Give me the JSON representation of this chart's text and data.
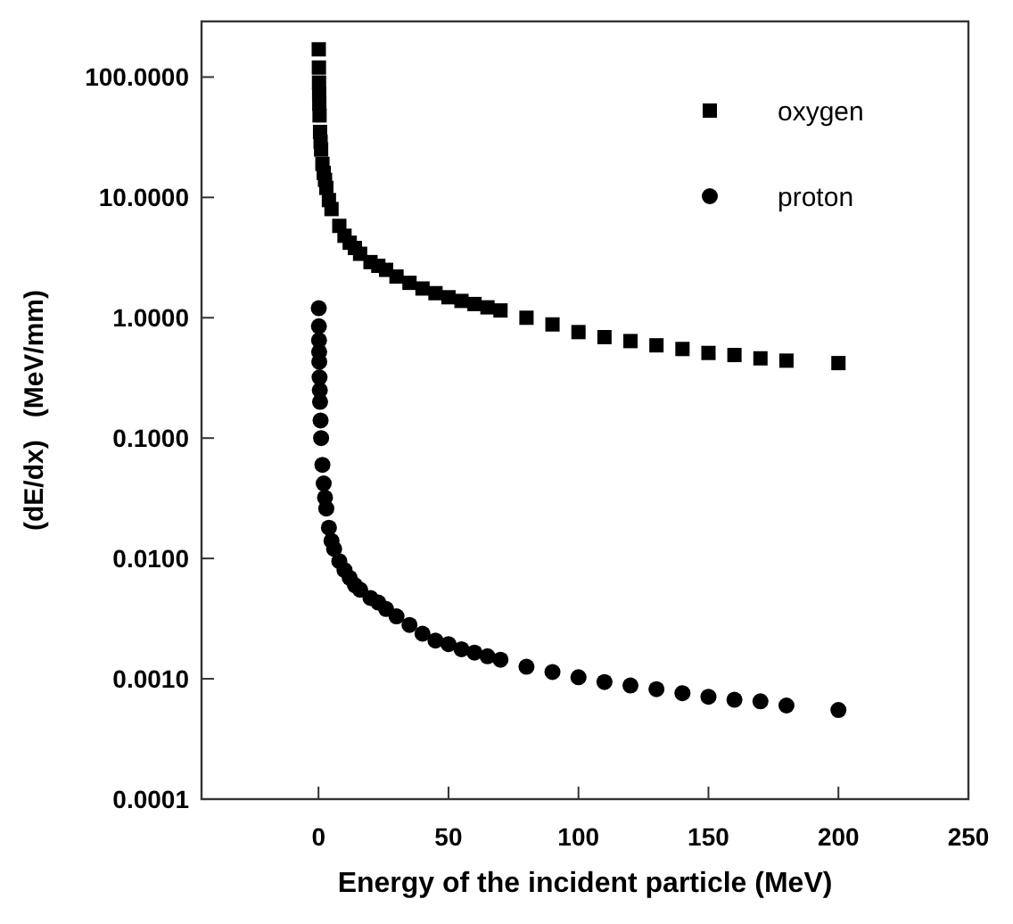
{
  "chart_data": {
    "type": "scatter",
    "xlabel": "Energy of the incident particle (MeV)",
    "ylabel": "(dE/dx)   (MeV/mm)",
    "log": "y",
    "xlim": [
      -45,
      250
    ],
    "xticks": [
      0,
      50,
      100,
      150,
      200,
      250
    ],
    "ylim": [
      0.0001,
      290
    ],
    "yticks": [
      {
        "value": 0.0001,
        "label": "0.0001"
      },
      {
        "value": 0.001,
        "label": "0.0010"
      },
      {
        "value": 0.01,
        "label": "0.0100"
      },
      {
        "value": 0.1,
        "label": "0.1000"
      },
      {
        "value": 1,
        "label": "1.0000"
      },
      {
        "value": 10,
        "label": "10.0000"
      },
      {
        "value": 100,
        "label": "100.0000"
      }
    ],
    "legend": "top right",
    "grid": false,
    "series": [
      {
        "name": "oxygen",
        "color": "#000000",
        "marker": "square",
        "x": [
          0.1,
          0.15,
          0.2,
          0.25,
          0.3,
          0.4,
          0.6,
          0.8,
          1,
          1.5,
          2,
          2.5,
          3,
          4,
          5,
          8,
          10,
          12,
          14,
          16,
          20,
          23,
          26,
          30,
          35,
          40,
          45,
          50,
          55,
          60,
          65,
          70,
          80,
          90,
          100,
          110,
          120,
          130,
          140,
          150,
          160,
          170,
          180,
          200
        ],
        "values": [
          170,
          120,
          90,
          72,
          60,
          48,
          35,
          29,
          25,
          19,
          16,
          14,
          12,
          9.5,
          8,
          5.8,
          4.8,
          4.2,
          3.8,
          3.4,
          2.9,
          2.7,
          2.5,
          2.2,
          1.95,
          1.75,
          1.6,
          1.48,
          1.38,
          1.3,
          1.22,
          1.15,
          1.0,
          0.88,
          0.76,
          0.69,
          0.64,
          0.59,
          0.55,
          0.51,
          0.49,
          0.46,
          0.44,
          0.42
        ]
      },
      {
        "name": "proton",
        "color": "#000000",
        "marker": "circle",
        "x": [
          0.1,
          0.15,
          0.2,
          0.25,
          0.3,
          0.4,
          0.5,
          0.6,
          0.8,
          1,
          1.5,
          2,
          2.5,
          3,
          4,
          5,
          6,
          8,
          10,
          12,
          14,
          16,
          20,
          23,
          26,
          30,
          35,
          40,
          45,
          50,
          55,
          60,
          65,
          70,
          80,
          90,
          100,
          110,
          120,
          130,
          140,
          150,
          160,
          170,
          180,
          200
        ],
        "values": [
          1.2,
          0.85,
          0.65,
          0.52,
          0.43,
          0.32,
          0.25,
          0.2,
          0.14,
          0.1,
          0.06,
          0.042,
          0.032,
          0.026,
          0.018,
          0.014,
          0.012,
          0.0095,
          0.008,
          0.0069,
          0.006,
          0.0055,
          0.0047,
          0.0043,
          0.0038,
          0.0033,
          0.0028,
          0.00237,
          0.00208,
          0.00194,
          0.00176,
          0.00165,
          0.00154,
          0.00144,
          0.00126,
          0.00114,
          0.00103,
          0.00094,
          0.00088,
          0.00082,
          0.00076,
          0.00071,
          0.00067,
          0.00065,
          0.0006,
          0.00055
        ]
      }
    ]
  }
}
